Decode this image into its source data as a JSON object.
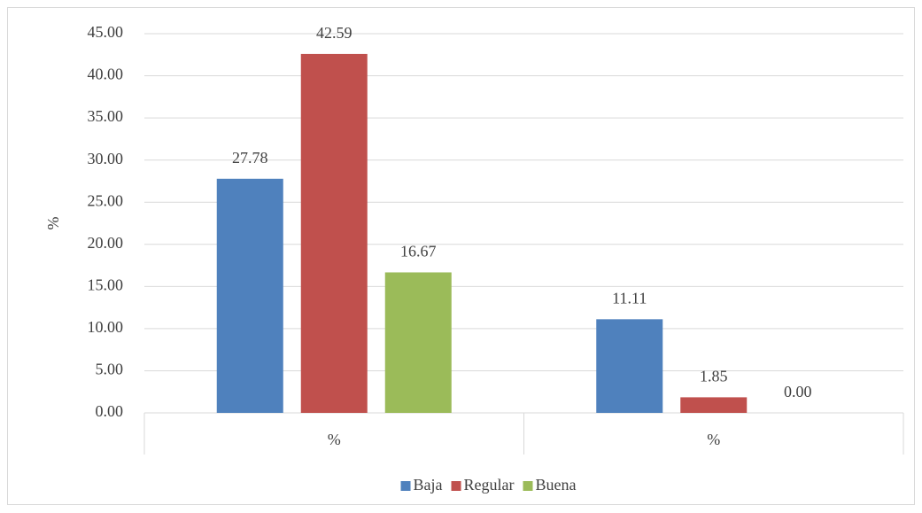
{
  "chart_data": {
    "type": "bar",
    "y_label": "%",
    "categories": [
      "%",
      "%"
    ],
    "series": [
      {
        "name": "Baja",
        "color": "#4f81bd",
        "values": [
          27.78,
          11.11
        ],
        "value_labels": [
          "27.78",
          "11.11"
        ]
      },
      {
        "name": "Regular",
        "color": "#c0504d",
        "values": [
          42.59,
          1.85
        ],
        "value_labels": [
          "42.59",
          "1.85"
        ]
      },
      {
        "name": "Buena",
        "color": "#9bbb59",
        "values": [
          16.67,
          0
        ],
        "value_labels": [
          "16.67",
          "0.00"
        ]
      }
    ],
    "ylim": [
      0,
      45
    ],
    "yticks": [
      {
        "value": 0,
        "label": "0.00"
      },
      {
        "value": 5,
        "label": "5.00"
      },
      {
        "value": 10,
        "label": "10.00"
      },
      {
        "value": 15,
        "label": "15.00"
      },
      {
        "value": 20,
        "label": "20.00"
      },
      {
        "value": 25,
        "label": "25.00"
      },
      {
        "value": 30,
        "label": "30.00"
      },
      {
        "value": 35,
        "label": "35.00"
      },
      {
        "value": 40,
        "label": "40.00"
      },
      {
        "value": 45,
        "label": "45.00"
      }
    ],
    "grid": true,
    "legend": "bottom"
  }
}
